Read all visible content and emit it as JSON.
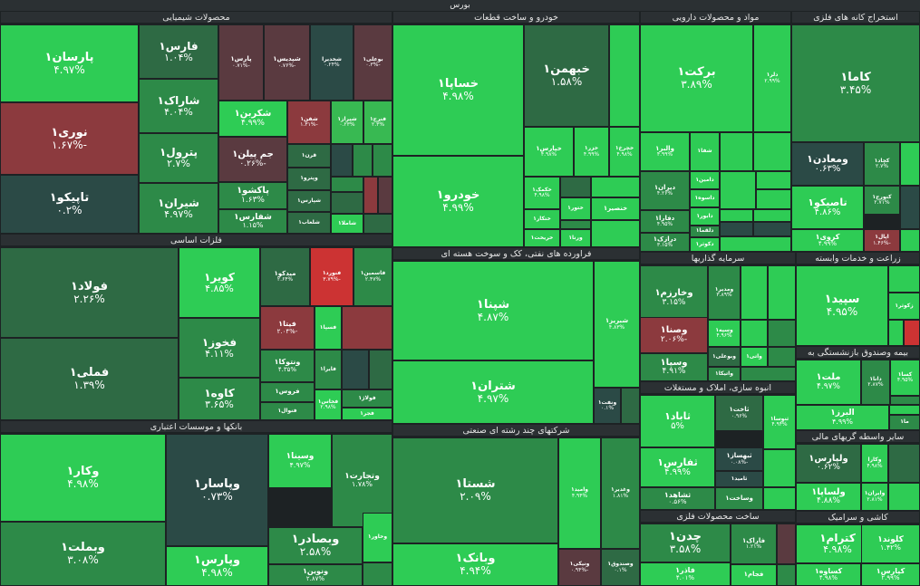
{
  "title": "بورس",
  "colors": {
    "strong_green": "#2ecc55",
    "green": "#38b952",
    "mid_green": "#2d8a48",
    "dark_green": "#2e6a44",
    "slate": "#2b4a46",
    "dark_red": "#5a3a40",
    "red": "#8c3a3e",
    "bright_red": "#cc3333"
  },
  "sectors": [
    {
      "name": "محصولات شیمیایی"
    },
    {
      "name": "خودرو و ساخت قطعات"
    },
    {
      "name": "مواد و محصولات دارویی"
    },
    {
      "name": "استخراج کانه های فلزی"
    },
    {
      "name": "فلزات اساسی"
    },
    {
      "name": "فراورده های نفتی، کک و سوخت هسته ای"
    },
    {
      "name": "سرمایه گذاریها"
    },
    {
      "name": "زراعت و خدمات وابسته"
    },
    {
      "name": "بیمه وصندوق بازنشستگی به"
    },
    {
      "name": "انبوه سازی، املاک و مستغلات"
    },
    {
      "name": "بانکها و موسسات اعتباری"
    },
    {
      "name": "شرکتهای چند رشته ای صنعتی"
    },
    {
      "name": "سایر واسطه گریهای مالی"
    },
    {
      "name": "ساخت محصولات فلزی"
    },
    {
      "name": "کاشی و سرامیک"
    }
  ],
  "chart_data": {
    "type": "treemap",
    "title": "بورس",
    "tiles": [
      {
        "symbol": "پارسان۱",
        "change": "۴.۹۷%"
      },
      {
        "symbol": "نوری۱",
        "change": "-۱.۶۷%"
      },
      {
        "symbol": "تاپیکو۱",
        "change": "۰.۲%"
      },
      {
        "symbol": "فارس۱",
        "change": "۱.۰۴%"
      },
      {
        "symbol": "پارس۱",
        "change": "-۰.۷۱%"
      },
      {
        "symbol": "شپدیس۱",
        "change": "-۰.۷۶%"
      },
      {
        "symbol": "شخدیرا",
        "change": "۰.۲۴%"
      },
      {
        "symbol": "بوعلی۱",
        "change": "-۰.۳%"
      },
      {
        "symbol": "شاراک۱",
        "change": "۴.۰۴%"
      },
      {
        "symbol": "شکربن۱",
        "change": "۴.۹۹%"
      },
      {
        "symbol": "شفن۱",
        "change": "-۱.۳۱%"
      },
      {
        "symbol": "شیراز۱",
        "change": "۰.۲۳%"
      },
      {
        "symbol": "فنرج۱",
        "change": "۲.۳%"
      },
      {
        "symbol": "پترول۱",
        "change": "۲.۷%"
      },
      {
        "symbol": "جم پیلن۱",
        "change": "-۰.۲۶%"
      },
      {
        "symbol": "قرن۱",
        "change": ""
      },
      {
        "symbol": "وپترو۱",
        "change": ""
      },
      {
        "symbol": "پاکشو۱",
        "change": "۱.۶۳%"
      },
      {
        "symbol": "شپارس۱",
        "change": ""
      },
      {
        "symbol": "شیران۱",
        "change": "۴.۹۷%"
      },
      {
        "symbol": "شفارس۱",
        "change": "۱.۱۵%"
      },
      {
        "symbol": "شلعاب۱",
        "change": ""
      },
      {
        "symbol": "شاملا۱",
        "change": ""
      },
      {
        "symbol": "خساپا۱",
        "change": "۴.۹۸%"
      },
      {
        "symbol": "خبهمن۱",
        "change": "۱.۵۸%"
      },
      {
        "symbol": "خودرو۱",
        "change": "۴.۹۹%"
      },
      {
        "symbol": "خپارس۱",
        "change": "۴.۹۸%"
      },
      {
        "symbol": "خزر۱",
        "change": "۴.۹۹%"
      },
      {
        "symbol": "خچرخ۱",
        "change": "۴.۹۸%"
      },
      {
        "symbol": "خکمک۱",
        "change": "۴.۹۸%"
      },
      {
        "symbol": "ختکار۱",
        "change": ""
      },
      {
        "symbol": "خریخت۱",
        "change": ""
      },
      {
        "symbol": "ختور۱",
        "change": ""
      },
      {
        "symbol": "ورنا۱",
        "change": ""
      },
      {
        "symbol": "خنصیر۱",
        "change": ""
      },
      {
        "symbol": "برکت۱",
        "change": "۳.۸۹%"
      },
      {
        "symbol": "دلر۱",
        "change": "۲.۹۹%"
      },
      {
        "symbol": "والبر۱",
        "change": "۴.۹۹%"
      },
      {
        "symbol": "شفا۱",
        "change": ""
      },
      {
        "symbol": "دیران۱",
        "change": "۴.۲۶%"
      },
      {
        "symbol": "دامین۱",
        "change": ""
      },
      {
        "symbol": "داسوه۱",
        "change": ""
      },
      {
        "symbol": "دفارا۱",
        "change": "۴.۹۵%"
      },
      {
        "symbol": "دابور۱",
        "change": ""
      },
      {
        "symbol": "دلقما۱",
        "change": ""
      },
      {
        "symbol": "درازک۱",
        "change": "۳.۱۵%"
      },
      {
        "symbol": "دکوثر۱",
        "change": ""
      },
      {
        "symbol": "کاما۱",
        "change": "۳.۴۵%"
      },
      {
        "symbol": "ومعادن۱",
        "change": "۰.۶۳%"
      },
      {
        "symbol": "کچاد۱",
        "change": "۲.۷%"
      },
      {
        "symbol": "تاصیکو۱",
        "change": "۴.۸۶%"
      },
      {
        "symbol": "کنورج۱",
        "change": "۲.۷۱%"
      },
      {
        "symbol": "کروی۱",
        "change": "۴.۹۹%"
      },
      {
        "symbol": "اپال۱",
        "change": "-۱.۴۶%"
      },
      {
        "symbol": "فولاد۱",
        "change": "۲.۲۶%"
      },
      {
        "symbol": "فملی۱",
        "change": "۱.۳۹%"
      },
      {
        "symbol": "کویر۱",
        "change": "۴.۸۵%"
      },
      {
        "symbol": "فخوز۱",
        "change": "۴.۱۱%"
      },
      {
        "symbol": "کاوه۱",
        "change": "۳.۶۵%"
      },
      {
        "symbol": "میدکو۱",
        "change": "۲.۶۴%"
      },
      {
        "symbol": "فنورد۱",
        "change": "-۳.۷۹%"
      },
      {
        "symbol": "فاسمین۱",
        "change": "۲.۴۷%"
      },
      {
        "symbol": "فیتا۱",
        "change": "-۲.۰۴%"
      },
      {
        "symbol": "فسپا۱",
        "change": ""
      },
      {
        "symbol": "ونتوکا۱",
        "change": "۴.۳۵%"
      },
      {
        "symbol": "فایرا۱",
        "change": ""
      },
      {
        "symbol": "فروس۱",
        "change": ""
      },
      {
        "symbol": "فنوال۱",
        "change": ""
      },
      {
        "symbol": "فخاس۱",
        "change": "۲.۹۸%"
      },
      {
        "symbol": "فولاژ۱",
        "change": ""
      },
      {
        "symbol": "فجر۱",
        "change": ""
      },
      {
        "symbol": "شپنا۱",
        "change": "۴.۸۷%"
      },
      {
        "symbol": "شبریز۱",
        "change": "۴.۸۳%"
      },
      {
        "symbol": "شتران۱",
        "change": "۴.۹۷%"
      },
      {
        "symbol": "ونفت۱",
        "change": "۰.۱%"
      },
      {
        "symbol": "وخارزم۱",
        "change": "۳.۱۵%"
      },
      {
        "symbol": "ومدیر۱",
        "change": "۳.۸۹%"
      },
      {
        "symbol": "وسپه۱",
        "change": "۴.۹۶%"
      },
      {
        "symbol": "وصنا۱",
        "change": "-۲.۰۶%"
      },
      {
        "symbol": "وبوعلی۱",
        "change": ""
      },
      {
        "symbol": "وسپا۱",
        "change": "۴.۹۱%"
      },
      {
        "symbol": "واتی۱",
        "change": ""
      },
      {
        "symbol": "واتیکا۱",
        "change": ""
      },
      {
        "symbol": "سپید۱",
        "change": "۴.۹۵%"
      },
      {
        "symbol": "زکوثر۱",
        "change": ""
      },
      {
        "symbol": "ملت۱",
        "change": "۴.۹۷%"
      },
      {
        "symbol": "دانا۱",
        "change": "۲.۸۷%"
      },
      {
        "symbol": "کسا۱",
        "change": "۴.۹۵%"
      },
      {
        "symbol": "البرز۱",
        "change": "۴.۹۹%"
      },
      {
        "symbol": "ما۱",
        "change": ""
      },
      {
        "symbol": "ثاباد۱",
        "change": "۵%"
      },
      {
        "symbol": "ثاخت۱",
        "change": "۰.۹۶%"
      },
      {
        "symbol": "ثنوسا۱",
        "change": "۴.۹۴%"
      },
      {
        "symbol": "ثفارس۱",
        "change": "۴.۹۹%"
      },
      {
        "symbol": "ثبهساز۱",
        "change": "-۰.۰۸%"
      },
      {
        "symbol": "ثامید۱",
        "change": ""
      },
      {
        "symbol": "ثشاهد۱",
        "change": "۰.۵۶%"
      },
      {
        "symbol": "وساخت۱",
        "change": ""
      },
      {
        "symbol": "وکار۱",
        "change": "۴.۹۸%"
      },
      {
        "symbol": "وپاسار۱",
        "change": "۰.۷۳%"
      },
      {
        "symbol": "وسینا۱",
        "change": "۴.۹۷%"
      },
      {
        "symbol": "وتجارت۱",
        "change": "۱.۷۸%"
      },
      {
        "symbol": "وبملت۱",
        "change": "۳.۰۸%"
      },
      {
        "symbol": "وپارس۱",
        "change": "۴.۹۸%"
      },
      {
        "symbol": "وبصادر۱",
        "change": "۲.۵۸%"
      },
      {
        "symbol": "وخاور۱",
        "change": ""
      },
      {
        "symbol": "ونوین۱",
        "change": "۲.۸۷%"
      },
      {
        "symbol": "شستا۱",
        "change": "۲.۰۹%"
      },
      {
        "symbol": "وامید۱",
        "change": "۴.۹۴%"
      },
      {
        "symbol": "وغدیر۱",
        "change": "۱.۸۱%"
      },
      {
        "symbol": "وبانک۱",
        "change": "۴.۹۴%"
      },
      {
        "symbol": "ونیکی۱",
        "change": "-۰.۹۴%"
      },
      {
        "symbol": "وصندوق۱",
        "change": "۰.۱%"
      },
      {
        "symbol": "ولپارس۱",
        "change": "۰.۶۲%"
      },
      {
        "symbol": "وکارا",
        "change": "۴.۹۸%"
      },
      {
        "symbol": "ولساپا۱",
        "change": "۴.۸۸%"
      },
      {
        "symbol": "وایران۱",
        "change": "۲.۸۱%"
      },
      {
        "symbol": "چدن۱",
        "change": "۳.۵۸%"
      },
      {
        "symbol": "فاراک۱",
        "change": "۱.۲۱%"
      },
      {
        "symbol": "فاذر۱",
        "change": "۴.۰۱%"
      },
      {
        "symbol": "فجام۱",
        "change": ""
      },
      {
        "symbol": "کترام۱",
        "change": "۴.۹۸%"
      },
      {
        "symbol": "کلوند۱",
        "change": "۱.۴۲%"
      },
      {
        "symbol": "کساوه۱",
        "change": "۴.۹۸%"
      },
      {
        "symbol": "کپارس۱",
        "change": "۲.۹۹%"
      }
    ]
  }
}
